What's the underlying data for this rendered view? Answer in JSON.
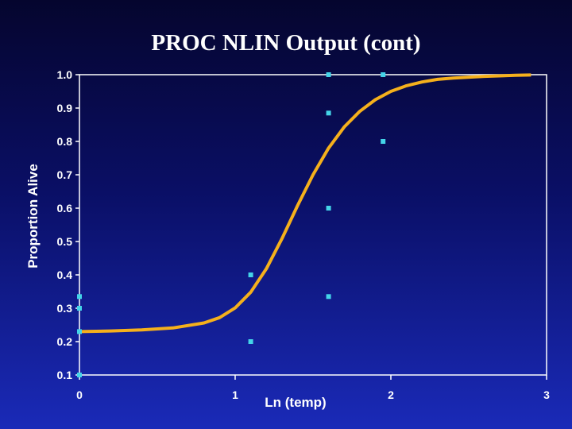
{
  "slide": {
    "title": "PROC NLIN Output (cont)"
  },
  "colors": {
    "points": "#44d4e8",
    "curve": "#f5b01c",
    "axes": "#ffffff"
  },
  "chart_data": {
    "type": "scatter",
    "title": "",
    "xlabel": "Ln (temp)",
    "ylabel": "Proportion Alive",
    "xlim": [
      0,
      3
    ],
    "ylim": [
      0.1,
      1.0
    ],
    "x_ticks": [
      0,
      1,
      2,
      3
    ],
    "x_tick_labels": [
      "0",
      "1",
      "2",
      "3"
    ],
    "y_ticks": [
      0.1,
      0.2,
      0.3,
      0.4,
      0.5,
      0.6,
      0.7,
      0.8,
      0.9,
      1.0
    ],
    "y_tick_labels": [
      "0.1",
      "0.2",
      "0.3",
      "0.4",
      "0.5",
      "0.6",
      "0.7",
      "0.8",
      "0.9",
      "1.0"
    ],
    "grid": false,
    "series": [
      {
        "kind": "points",
        "x": [
          0.0,
          0.0,
          0.0,
          0.0,
          1.1,
          1.1,
          1.6,
          1.6,
          1.6,
          1.6,
          1.95,
          1.95
        ],
        "y": [
          0.1,
          0.23,
          0.3,
          0.335,
          0.2,
          0.4,
          0.335,
          0.6,
          0.885,
          1.0,
          0.8,
          1.0
        ]
      },
      {
        "kind": "fitted-curve",
        "x": [
          0.0,
          0.2,
          0.4,
          0.6,
          0.8,
          0.9,
          1.0,
          1.1,
          1.2,
          1.3,
          1.4,
          1.5,
          1.6,
          1.7,
          1.8,
          1.9,
          2.0,
          2.1,
          2.2,
          2.3,
          2.4,
          2.6,
          2.8,
          2.9
        ],
        "y": [
          0.23,
          0.232,
          0.235,
          0.241,
          0.256,
          0.272,
          0.301,
          0.348,
          0.418,
          0.508,
          0.607,
          0.7,
          0.78,
          0.843,
          0.89,
          0.925,
          0.95,
          0.967,
          0.978,
          0.986,
          0.99,
          0.995,
          0.998,
          0.999
        ]
      }
    ]
  }
}
